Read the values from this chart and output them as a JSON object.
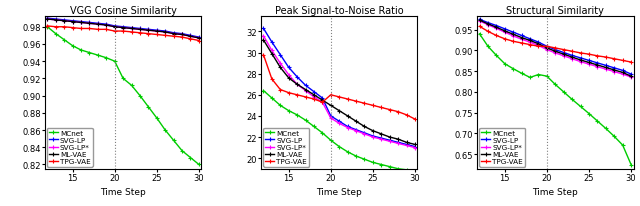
{
  "x": [
    12,
    13,
    14,
    15,
    16,
    17,
    18,
    19,
    20,
    21,
    22,
    23,
    24,
    25,
    26,
    27,
    28,
    29,
    30
  ],
  "vgg": {
    "title": "VGG Cosine Similarity",
    "xlabel": "Time Step",
    "ylim": [
      0.815,
      0.993
    ],
    "yticks": [
      0.82,
      0.84,
      0.86,
      0.88,
      0.9,
      0.92,
      0.94,
      0.96,
      0.98
    ],
    "MCnet": [
      0.98,
      0.972,
      0.965,
      0.958,
      0.953,
      0.95,
      0.947,
      0.944,
      0.94,
      0.92,
      0.912,
      0.9,
      0.887,
      0.874,
      0.86,
      0.848,
      0.836,
      0.828,
      0.82
    ],
    "SVG-LP": [
      0.99,
      0.989,
      0.988,
      0.987,
      0.986,
      0.985,
      0.984,
      0.983,
      0.981,
      0.98,
      0.979,
      0.978,
      0.977,
      0.976,
      0.975,
      0.973,
      0.972,
      0.97,
      0.968
    ],
    "SVG-LP*": [
      0.989,
      0.988,
      0.987,
      0.986,
      0.985,
      0.984,
      0.983,
      0.982,
      0.98,
      0.979,
      0.978,
      0.977,
      0.976,
      0.975,
      0.974,
      0.972,
      0.971,
      0.969,
      0.967
    ],
    "ML-VAE": [
      0.989,
      0.988,
      0.987,
      0.986,
      0.985,
      0.984,
      0.983,
      0.982,
      0.98,
      0.979,
      0.978,
      0.977,
      0.976,
      0.975,
      0.974,
      0.972,
      0.971,
      0.969,
      0.967
    ],
    "TPG-VAE": [
      0.981,
      0.98,
      0.98,
      0.979,
      0.978,
      0.978,
      0.977,
      0.977,
      0.975,
      0.975,
      0.974,
      0.973,
      0.972,
      0.971,
      0.97,
      0.969,
      0.968,
      0.966,
      0.964
    ]
  },
  "psnr": {
    "title": "Peak Signal-to-Noise Ratio",
    "xlabel": "Time Step",
    "ylim": [
      19.0,
      33.5
    ],
    "yticks": [
      20,
      22,
      24,
      26,
      28,
      30,
      32
    ],
    "MCnet": [
      26.4,
      25.7,
      25.0,
      24.5,
      24.1,
      23.6,
      23.0,
      22.4,
      21.7,
      21.1,
      20.6,
      20.2,
      19.9,
      19.6,
      19.4,
      19.2,
      19.0,
      18.9,
      18.8
    ],
    "SVG-LP": [
      32.3,
      31.0,
      29.8,
      28.6,
      27.7,
      26.9,
      26.3,
      25.7,
      24.0,
      23.5,
      23.0,
      22.7,
      22.4,
      22.1,
      21.9,
      21.7,
      21.5,
      21.3,
      21.1
    ],
    "SVG-LP*": [
      31.6,
      30.2,
      29.0,
      27.9,
      27.0,
      26.4,
      25.8,
      25.3,
      23.8,
      23.3,
      22.9,
      22.6,
      22.3,
      22.0,
      21.8,
      21.6,
      21.4,
      21.2,
      21.0
    ],
    "ML-VAE": [
      31.2,
      29.9,
      28.6,
      27.6,
      27.0,
      26.5,
      26.0,
      25.5,
      25.0,
      24.5,
      24.0,
      23.5,
      23.0,
      22.6,
      22.3,
      22.0,
      21.8,
      21.5,
      21.3
    ],
    "TPG-VAE": [
      29.8,
      27.5,
      26.5,
      26.2,
      26.0,
      25.8,
      25.6,
      25.3,
      26.0,
      25.8,
      25.6,
      25.4,
      25.2,
      25.0,
      24.8,
      24.6,
      24.4,
      24.1,
      23.7
    ]
  },
  "ssim": {
    "title": "Structural Similarity",
    "xlabel": "Time Step",
    "ylim": [
      0.615,
      0.984
    ],
    "yticks": [
      0.65,
      0.7,
      0.75,
      0.8,
      0.85,
      0.9,
      0.95
    ],
    "MCnet": [
      0.94,
      0.91,
      0.888,
      0.868,
      0.856,
      0.845,
      0.835,
      0.842,
      0.838,
      0.818,
      0.8,
      0.782,
      0.765,
      0.748,
      0.73,
      0.712,
      0.693,
      0.672,
      0.625
    ],
    "SVG-LP": [
      0.975,
      0.967,
      0.96,
      0.952,
      0.944,
      0.936,
      0.928,
      0.92,
      0.91,
      0.902,
      0.895,
      0.888,
      0.882,
      0.876,
      0.87,
      0.864,
      0.858,
      0.852,
      0.843
    ],
    "SVG-LP*": [
      0.971,
      0.962,
      0.953,
      0.944,
      0.935,
      0.927,
      0.92,
      0.912,
      0.902,
      0.894,
      0.887,
      0.88,
      0.873,
      0.867,
      0.861,
      0.855,
      0.849,
      0.843,
      0.836
    ],
    "ML-VAE": [
      0.973,
      0.964,
      0.956,
      0.947,
      0.939,
      0.931,
      0.924,
      0.916,
      0.906,
      0.898,
      0.891,
      0.884,
      0.877,
      0.871,
      0.865,
      0.859,
      0.853,
      0.847,
      0.838
    ],
    "TPG-VAE": [
      0.958,
      0.946,
      0.936,
      0.928,
      0.922,
      0.918,
      0.914,
      0.91,
      0.91,
      0.906,
      0.902,
      0.898,
      0.894,
      0.891,
      0.887,
      0.884,
      0.88,
      0.876,
      0.872
    ]
  },
  "colors": {
    "MCnet": "#00cc00",
    "SVG-LP": "#0000ff",
    "SVG-LP*": "#ff00ff",
    "ML-VAE": "#000000",
    "TPG-VAE": "#ff0000"
  },
  "marker": "+",
  "markersize": 3.5,
  "linewidth": 1.0,
  "vline_x": 20,
  "legend_labels": [
    "MCnet",
    "SVG-LP",
    "SVG-LP*",
    "ML-VAE",
    "TPG-VAE"
  ]
}
